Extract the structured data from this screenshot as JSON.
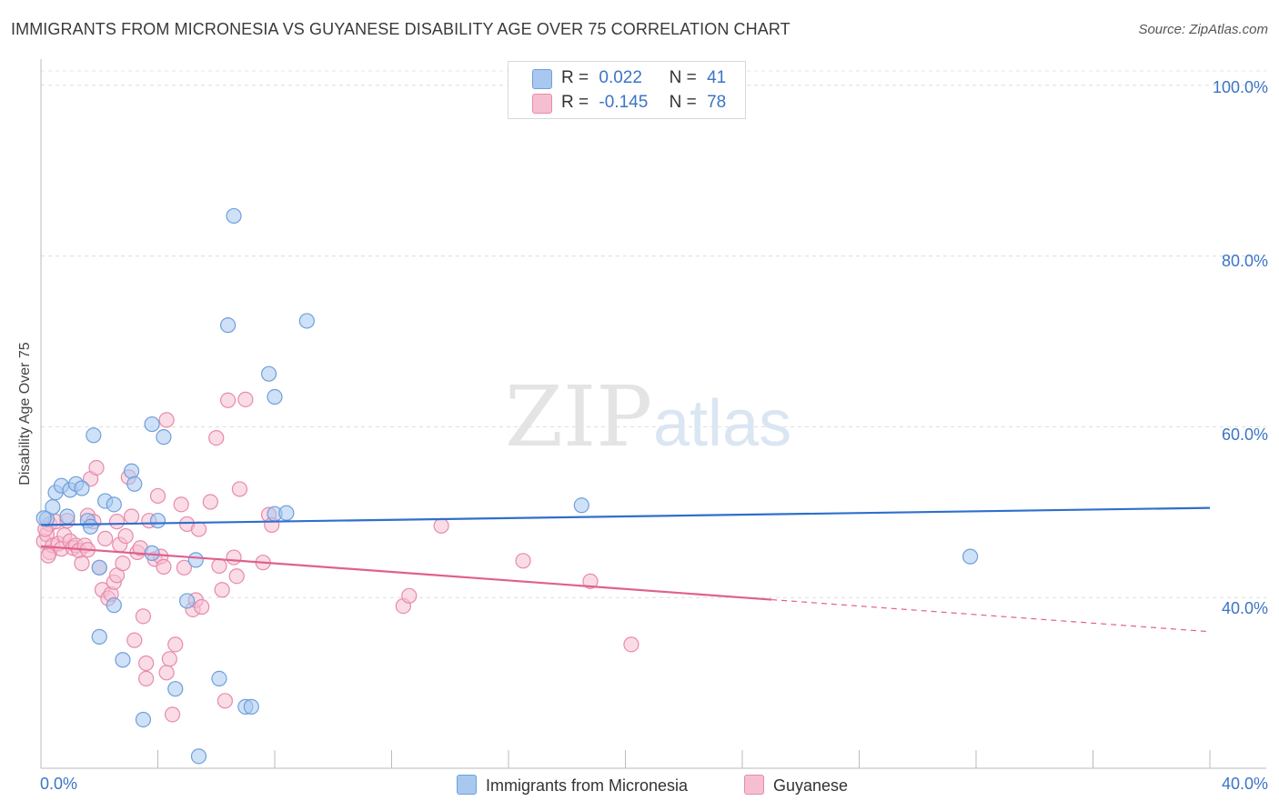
{
  "title": "IMMIGRANTS FROM MICRONESIA VS GUYANESE DISABILITY AGE OVER 75 CORRELATION CHART",
  "source": "Source: ZipAtlas.com",
  "watermark": {
    "zip": "ZIP",
    "atlas": "atlas"
  },
  "legend": {
    "r_label": "R =",
    "n_label": "N =",
    "rows": [
      {
        "r": "0.022",
        "n": "41"
      },
      {
        "r": "-0.145",
        "n": "78"
      }
    ]
  },
  "bottom_legend": [
    "Immigrants from Micronesia",
    "Guyanese"
  ],
  "colors": {
    "blue_fill": "#a8c8f0",
    "blue_stroke": "#6f9fdc",
    "blue_line": "#2f6fcc",
    "pink_fill": "#f6bfd1",
    "pink_stroke": "#e88aa9",
    "pink_line": "#e0608f",
    "tick_text": "#3b74c6"
  },
  "chart_data": {
    "type": "scatter",
    "title": "IMMIGRANTS FROM MICRONESIA VS GUYANESE DISABILITY AGE OVER 75 CORRELATION CHART",
    "xlabel": "",
    "ylabel": "Disability Age Over 75",
    "xlim": [
      0,
      40
    ],
    "ylim": [
      20,
      102
    ],
    "x_tick_labels": [
      "0.0%",
      "40.0%"
    ],
    "y_ticks": [
      40,
      60,
      80,
      100
    ],
    "y_tick_labels": [
      "40.0%",
      "60.0%",
      "80.0%",
      "100.0%"
    ],
    "grid": true,
    "series": [
      {
        "name": "Immigrants from Micronesia",
        "r": 0.022,
        "n": 41,
        "trend": {
          "x": [
            0,
            40
          ],
          "y": [
            48.5,
            50.5
          ],
          "dashed_from": null
        },
        "points": [
          [
            0.2,
            49.2
          ],
          [
            0.4,
            50.6
          ],
          [
            0.5,
            52.3
          ],
          [
            0.7,
            53.1
          ],
          [
            0.9,
            49.5
          ],
          [
            1.0,
            52.6
          ],
          [
            1.2,
            53.3
          ],
          [
            1.4,
            52.8
          ],
          [
            1.6,
            49.0
          ],
          [
            1.7,
            48.3
          ],
          [
            1.8,
            59.0
          ],
          [
            2.0,
            43.5
          ],
          [
            2.2,
            51.3
          ],
          [
            2.5,
            50.9
          ],
          [
            2.5,
            39.1
          ],
          [
            2.0,
            35.4
          ],
          [
            2.8,
            32.7
          ],
          [
            3.1,
            54.8
          ],
          [
            3.2,
            53.3
          ],
          [
            3.5,
            25.7
          ],
          [
            3.8,
            45.2
          ],
          [
            3.8,
            60.3
          ],
          [
            4.0,
            49.0
          ],
          [
            4.2,
            58.8
          ],
          [
            4.6,
            29.3
          ],
          [
            5.0,
            39.6
          ],
          [
            5.3,
            44.4
          ],
          [
            5.4,
            21.4
          ],
          [
            6.1,
            30.5
          ],
          [
            6.4,
            71.9
          ],
          [
            6.6,
            84.7
          ],
          [
            7.0,
            27.2
          ],
          [
            7.2,
            27.2
          ],
          [
            7.8,
            66.2
          ],
          [
            8.0,
            63.5
          ],
          [
            8.0,
            49.8
          ],
          [
            8.4,
            49.9
          ],
          [
            9.1,
            72.4
          ],
          [
            18.5,
            50.8
          ],
          [
            31.8,
            44.8
          ],
          [
            0.1,
            49.3
          ]
        ]
      },
      {
        "name": "Guyanese",
        "r": -0.145,
        "n": 78,
        "trend": {
          "x": [
            0,
            40
          ],
          "y": [
            46.0,
            36.0
          ],
          "dashed_from": 25.0
        },
        "points": [
          [
            0.1,
            46.6
          ],
          [
            0.2,
            47.4
          ],
          [
            0.3,
            45.3
          ],
          [
            0.3,
            48.6
          ],
          [
            0.4,
            46.1
          ],
          [
            0.5,
            48.9
          ],
          [
            0.6,
            46.3
          ],
          [
            0.7,
            45.7
          ],
          [
            0.8,
            47.3
          ],
          [
            0.9,
            49.0
          ],
          [
            1.0,
            46.6
          ],
          [
            1.1,
            45.8
          ],
          [
            1.2,
            46.1
          ],
          [
            1.3,
            45.5
          ],
          [
            1.4,
            44.0
          ],
          [
            1.5,
            46.1
          ],
          [
            1.6,
            45.6
          ],
          [
            1.6,
            49.6
          ],
          [
            1.7,
            53.9
          ],
          [
            1.8,
            48.9
          ],
          [
            1.9,
            55.2
          ],
          [
            2.0,
            43.5
          ],
          [
            2.1,
            40.9
          ],
          [
            2.2,
            46.9
          ],
          [
            2.3,
            39.9
          ],
          [
            2.4,
            40.4
          ],
          [
            2.5,
            41.8
          ],
          [
            2.6,
            42.6
          ],
          [
            2.6,
            48.9
          ],
          [
            2.7,
            46.2
          ],
          [
            2.8,
            44.0
          ],
          [
            2.9,
            47.2
          ],
          [
            3.0,
            54.1
          ],
          [
            3.1,
            49.5
          ],
          [
            3.2,
            35.0
          ],
          [
            3.3,
            45.3
          ],
          [
            3.4,
            45.8
          ],
          [
            3.5,
            37.8
          ],
          [
            3.6,
            32.3
          ],
          [
            3.6,
            30.5
          ],
          [
            3.7,
            49.0
          ],
          [
            3.9,
            44.5
          ],
          [
            4.0,
            51.9
          ],
          [
            4.1,
            44.8
          ],
          [
            4.2,
            43.6
          ],
          [
            4.3,
            60.8
          ],
          [
            4.3,
            31.2
          ],
          [
            4.4,
            32.8
          ],
          [
            4.5,
            26.3
          ],
          [
            4.6,
            34.5
          ],
          [
            4.8,
            50.9
          ],
          [
            4.9,
            43.5
          ],
          [
            5.0,
            48.6
          ],
          [
            5.2,
            38.6
          ],
          [
            5.3,
            39.7
          ],
          [
            5.4,
            48.0
          ],
          [
            5.5,
            38.9
          ],
          [
            5.8,
            51.2
          ],
          [
            6.0,
            58.7
          ],
          [
            6.1,
            43.7
          ],
          [
            6.2,
            40.9
          ],
          [
            6.3,
            27.9
          ],
          [
            6.4,
            63.1
          ],
          [
            6.6,
            44.7
          ],
          [
            6.7,
            42.5
          ],
          [
            6.8,
            52.7
          ],
          [
            7.0,
            63.2
          ],
          [
            7.6,
            44.1
          ],
          [
            7.8,
            49.7
          ],
          [
            7.9,
            48.5
          ],
          [
            12.4,
            39.0
          ],
          [
            12.6,
            40.2
          ],
          [
            13.7,
            48.4
          ],
          [
            16.5,
            44.3
          ],
          [
            18.8,
            41.9
          ],
          [
            20.2,
            34.5
          ],
          [
            0.15,
            48.0
          ],
          [
            0.25,
            44.9
          ]
        ]
      }
    ]
  }
}
